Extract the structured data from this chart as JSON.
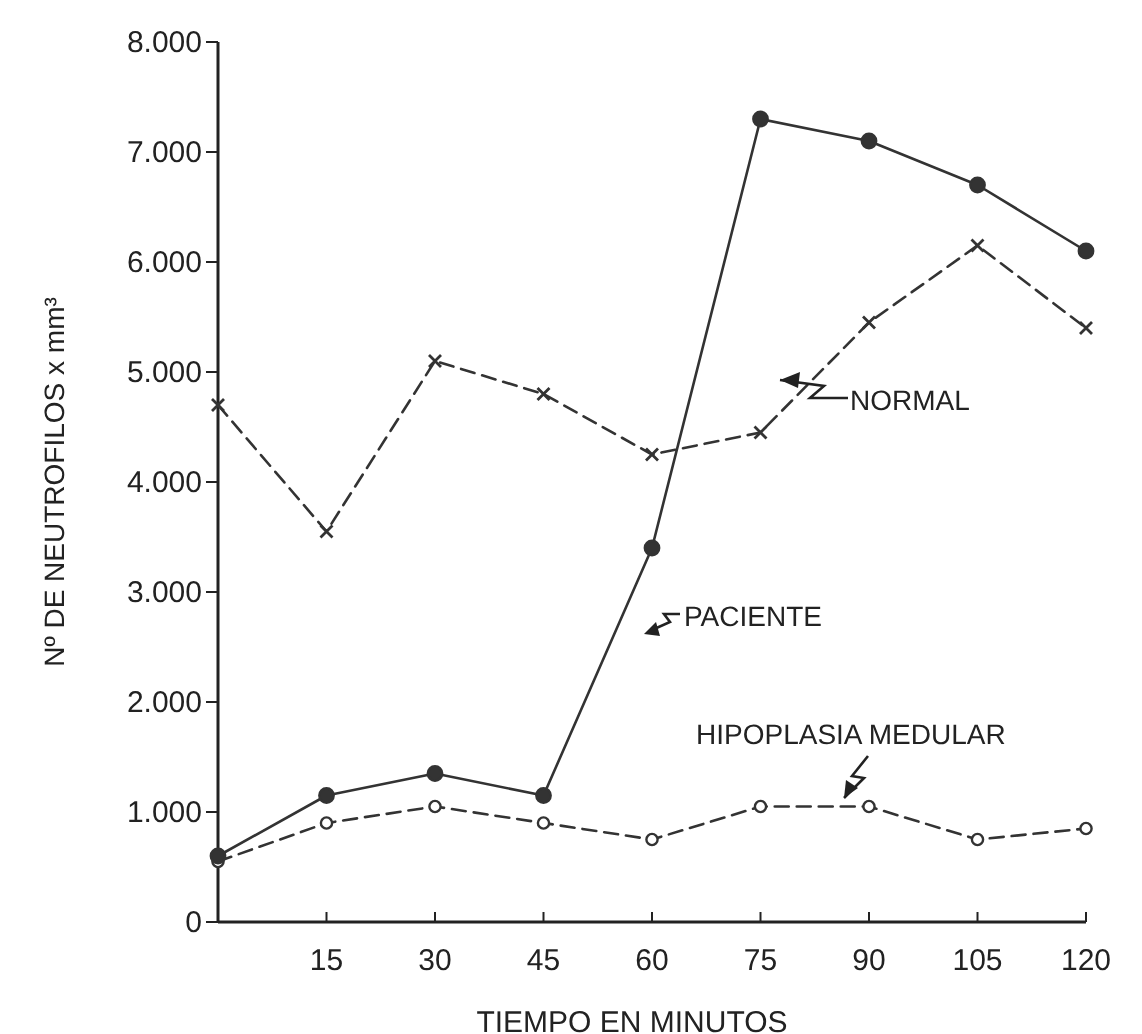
{
  "chart_data": {
    "type": "line",
    "xlabel": "TIEMPO EN MINUTOS",
    "ylabel": "Nº DE NEUTROFILOS x mm³",
    "x": [
      0,
      15,
      30,
      45,
      60,
      75,
      90,
      105,
      120
    ],
    "series": [
      {
        "name": "NORMAL",
        "color": "#333333",
        "marker": "cross",
        "line_style": "dashed",
        "values": [
          4700,
          3550,
          5100,
          4800,
          4250,
          4450,
          5450,
          6150,
          5400
        ]
      },
      {
        "name": "PACIENTE",
        "color": "#333333",
        "marker": "circle",
        "line_style": "solid",
        "values": [
          600,
          1150,
          1350,
          1150,
          3400,
          7300,
          7100,
          6700,
          6100
        ]
      },
      {
        "name": "HIPOPLASIA MEDULAR",
        "color": "#333333",
        "marker": "circle",
        "line_style": "dashed",
        "values": [
          550,
          900,
          1050,
          900,
          750,
          1050,
          1050,
          750,
          850
        ]
      }
    ],
    "xlim": [
      0,
      120
    ],
    "xticks": [
      15,
      30,
      45,
      60,
      75,
      90,
      105,
      120
    ],
    "ylim": [
      0,
      8000
    ],
    "yticks": [
      0,
      {
        "value": 1000,
        "label": "1.000"
      },
      {
        "value": 2000,
        "label": "2.000"
      },
      {
        "value": 3000,
        "label": "3.000"
      },
      {
        "value": 4000,
        "label": "4.000"
      },
      {
        "value": 5000,
        "label": "5.000"
      },
      {
        "value": 6000,
        "label": "6.000"
      },
      {
        "value": 7000,
        "label": "7.000"
      },
      {
        "value": 8000,
        "label": "8.000"
      }
    ],
    "grid": false
  }
}
